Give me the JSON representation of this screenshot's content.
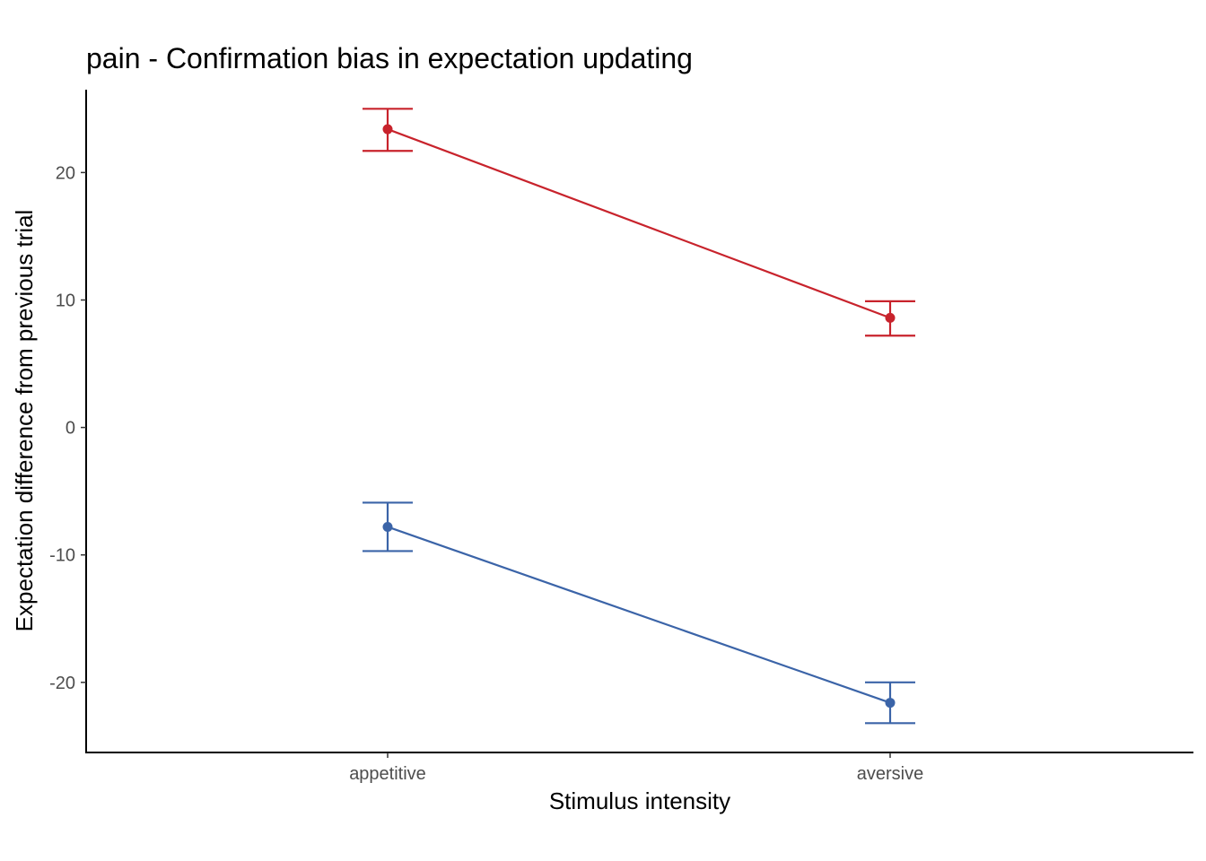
{
  "chart_data": {
    "type": "line",
    "title": "pain  - Confirmation bias in expectation updating",
    "xlabel": "Stimulus intensity",
    "ylabel": "Expectation difference from previous trial",
    "categories": [
      "appetitive",
      "aversive"
    ],
    "ylim": [
      -25.5,
      26.5
    ],
    "yticks": [
      -20,
      -10,
      0,
      10,
      20
    ],
    "grid": false,
    "legend": "none",
    "series": [
      {
        "color": "#c8232c",
        "values": [
          23.4,
          8.6
        ],
        "err_low": [
          21.7,
          7.2
        ],
        "err_high": [
          25.0,
          9.9
        ]
      },
      {
        "color": "#3b64a8",
        "values": [
          -7.8,
          -21.6
        ],
        "err_low": [
          -9.7,
          -23.2
        ],
        "err_high": [
          -5.9,
          -20.0
        ]
      }
    ]
  }
}
